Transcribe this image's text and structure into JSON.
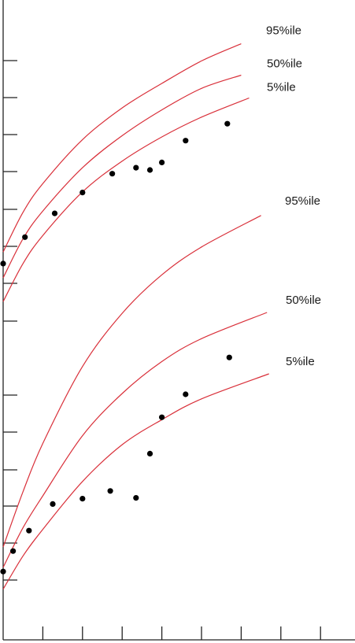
{
  "colors": {
    "curve": "#d9303a",
    "point": "#000000",
    "axis": "#222222",
    "background": "#ffffff"
  },
  "chart_data": [
    {
      "type": "line",
      "title": "",
      "xlabel": "",
      "ylabel": "",
      "grid": false,
      "legend": "percentile labels at right end of each curve",
      "xlim": [
        0,
        9
      ],
      "ylim": [
        0,
        8.5
      ],
      "x_ticks": [
        1,
        2,
        3,
        4,
        5,
        6,
        7,
        8
      ],
      "y_ticks": [
        1,
        2,
        3,
        4,
        5,
        6,
        7
      ],
      "series": [
        {
          "name": "95%ile",
          "x": [
            0,
            0.5,
            1,
            2,
            3,
            4,
            5,
            6
          ],
          "y": [
            1.9,
            3.1,
            3.97,
            5.3,
            6.26,
            7.0,
            7.68,
            8.2
          ]
        },
        {
          "name": "50%ile",
          "x": [
            0,
            0.5,
            1,
            2,
            3,
            4,
            5,
            6
          ],
          "y": [
            1.12,
            2.3,
            3.14,
            4.45,
            5.42,
            6.2,
            6.85,
            7.25
          ]
        },
        {
          "name": "5%ile",
          "x": [
            0,
            0.5,
            1,
            2,
            3,
            4,
            5,
            6.2
          ],
          "y": [
            0.4,
            1.55,
            2.4,
            3.72,
            4.65,
            5.38,
            5.98,
            6.56
          ]
        }
      ],
      "points": {
        "x": [
          0,
          0.55,
          1.3,
          2.0,
          2.75,
          3.35,
          3.7,
          4.0,
          4.6,
          5.65
        ],
        "y": [
          1.55,
          2.35,
          3.07,
          3.7,
          4.27,
          4.45,
          4.38,
          4.61,
          5.27,
          5.78
        ]
      }
    },
    {
      "type": "line",
      "title": "",
      "xlabel": "",
      "ylabel": "",
      "grid": false,
      "legend": "percentile labels at right end of each curve",
      "xlim": [
        0,
        9
      ],
      "ylim": [
        0,
        8.5
      ],
      "series": [
        {
          "name": "95%ile",
          "x": [
            0,
            0.5,
            1,
            2,
            3,
            4,
            5,
            6.5
          ],
          "y": [
            1.25,
            2.6,
            3.78,
            5.66,
            6.96,
            7.9,
            8.58,
            9.35
          ]
        },
        {
          "name": "50%ile",
          "x": [
            0,
            0.5,
            1,
            2,
            3,
            4,
            5,
            6.65
          ],
          "y": [
            0.75,
            1.72,
            2.5,
            3.97,
            5.0,
            5.78,
            6.34,
            6.98
          ]
        },
        {
          "name": "5%ile",
          "x": [
            0,
            0.5,
            1,
            2,
            3,
            4,
            5,
            6.7
          ],
          "y": [
            0.22,
            1.03,
            1.68,
            2.85,
            3.75,
            4.36,
            4.87,
            5.48
          ]
        }
      ],
      "points": {
        "x": [
          0,
          0.25,
          0.65,
          1.25,
          2.0,
          2.7,
          3.35,
          3.7,
          4.0,
          4.6,
          5.7
        ],
        "y": [
          0.65,
          1.15,
          1.65,
          2.3,
          2.43,
          2.62,
          2.45,
          3.53,
          4.42,
          4.98,
          5.88
        ]
      }
    }
  ]
}
